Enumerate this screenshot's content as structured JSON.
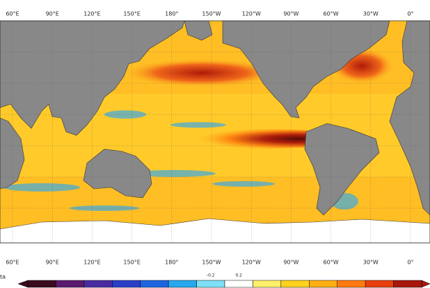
{
  "map": {
    "lon_labels_top": [
      "60°E",
      "90°E",
      "120°E",
      "150°E",
      "180°",
      "150°W",
      "120°W",
      "90°W",
      "60°W",
      "30°W",
      "0°"
    ],
    "lon_labels_bottom": [
      "60°E",
      "90°E",
      "120°E",
      "150°E",
      "180°",
      "150°W",
      "120°W",
      "90°W",
      "60°W",
      "30°W",
      "0°"
    ],
    "cut_label": "ta",
    "colorbar": {
      "labels": [
        "-0.2",
        "0.2"
      ],
      "colors": [
        "#3a0a1e",
        "#5a1a6e",
        "#4a2aa0",
        "#2a3ec8",
        "#1e66e0",
        "#26a8ee",
        "#7ee0f6",
        "#ffffff",
        "#fff06a",
        "#ffd21e",
        "#ffae14",
        "#ff7a10",
        "#e8400c",
        "#a8160c"
      ]
    }
  }
}
